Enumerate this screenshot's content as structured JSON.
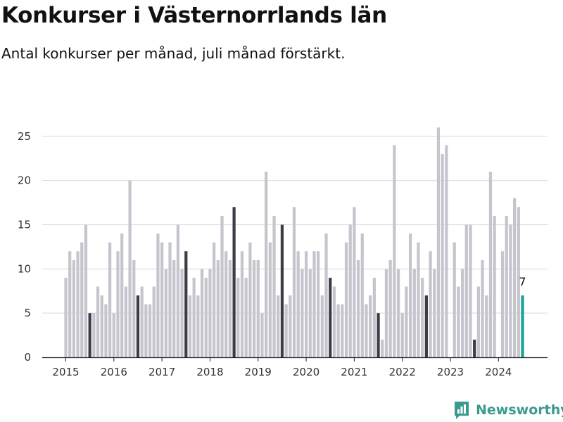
{
  "title": "Konkurser i Västernorrlands län",
  "subtitle": "Antal konkurser per månad, juli månad förstärkt.",
  "brand": "Newsworthy",
  "colors": {
    "bar": "#c6c5ce",
    "highlight": "#3d3b48",
    "latest": "#17a398",
    "grid": "#d9d9d9",
    "axis": "#222222",
    "brand": "#3b9a8e"
  },
  "chart_data": {
    "type": "bar",
    "title": "Konkurser i Västernorrlands län",
    "subtitle": "Antal konkurser per månad, juli månad förstärkt.",
    "x_start": "2015-01",
    "x_end": "2024-07",
    "values": [
      9,
      12,
      11,
      12,
      13,
      15,
      5,
      5,
      8,
      7,
      6,
      13,
      5,
      12,
      14,
      8,
      20,
      11,
      7,
      8,
      6,
      6,
      8,
      14,
      13,
      10,
      13,
      11,
      15,
      10,
      12,
      7,
      9,
      7,
      10,
      9,
      10,
      13,
      11,
      16,
      12,
      11,
      17,
      9,
      12,
      9,
      13,
      11,
      11,
      5,
      21,
      13,
      16,
      7,
      15,
      6,
      7,
      17,
      12,
      10,
      12,
      10,
      12,
      12,
      7,
      14,
      9,
      8,
      6,
      6,
      13,
      15,
      17,
      11,
      14,
      6,
      7,
      9,
      5,
      2,
      10,
      11,
      24,
      10,
      5,
      8,
      14,
      10,
      13,
      9,
      7,
      12,
      10,
      26,
      23,
      24,
      0,
      13,
      8,
      10,
      15,
      15,
      2,
      8,
      11,
      7,
      21,
      16,
      0,
      12,
      16,
      15,
      18,
      17,
      7
    ],
    "highlight_month": "07",
    "latest_label": "7",
    "x_ticks": [
      "2015",
      "2016",
      "2017",
      "2018",
      "2019",
      "2020",
      "2021",
      "2022",
      "2023",
      "2024"
    ],
    "y_ticks": [
      0,
      5,
      10,
      15,
      20,
      25
    ],
    "ylim": [
      0,
      26.5
    ],
    "grid": true,
    "legend": "none"
  }
}
